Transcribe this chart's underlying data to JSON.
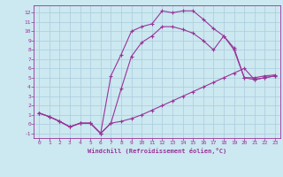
{
  "xlabel": "Windchill (Refroidissement éolien,°C)",
  "bg_color": "#cce8f0",
  "line_color": "#993399",
  "grid_color": "#aaccdd",
  "xlim": [
    -0.5,
    23.5
  ],
  "ylim": [
    -1.5,
    12.8
  ],
  "xticks": [
    0,
    1,
    2,
    3,
    4,
    5,
    6,
    7,
    8,
    9,
    10,
    11,
    12,
    13,
    14,
    15,
    16,
    17,
    18,
    19,
    20,
    21,
    22,
    23
  ],
  "yticks": [
    -1,
    0,
    1,
    2,
    3,
    4,
    5,
    6,
    7,
    8,
    9,
    10,
    11,
    12
  ],
  "line1_x": [
    0,
    1,
    2,
    3,
    4,
    5,
    6,
    7,
    8,
    9,
    10,
    11,
    12,
    13,
    14,
    15,
    16,
    17,
    18,
    19,
    20,
    21,
    22,
    23
  ],
  "line1_y": [
    1.2,
    0.8,
    0.3,
    -0.3,
    0.1,
    0.1,
    -1.0,
    0.1,
    0.3,
    0.6,
    1.0,
    1.5,
    2.0,
    2.5,
    3.0,
    3.5,
    4.0,
    4.5,
    5.0,
    5.5,
    6.0,
    4.8,
    5.0,
    5.2
  ],
  "line2_x": [
    0,
    1,
    2,
    3,
    4,
    5,
    6,
    7,
    8,
    9,
    10,
    11,
    12,
    13,
    14,
    15,
    16,
    17,
    18,
    19,
    20,
    21,
    22,
    23
  ],
  "line2_y": [
    1.2,
    0.8,
    0.3,
    -0.3,
    0.1,
    0.1,
    -1.0,
    5.2,
    7.5,
    10.0,
    10.5,
    10.8,
    12.2,
    12.0,
    12.2,
    12.2,
    11.3,
    10.3,
    9.5,
    8.2,
    5.0,
    5.0,
    5.2,
    5.3
  ],
  "line3_x": [
    0,
    1,
    2,
    3,
    4,
    5,
    6,
    7,
    8,
    9,
    10,
    11,
    12,
    13,
    14,
    15,
    16,
    17,
    18,
    19,
    20,
    21,
    22,
    23
  ],
  "line3_y": [
    1.2,
    0.8,
    0.3,
    -0.3,
    0.1,
    0.1,
    -1.0,
    0.1,
    3.8,
    7.3,
    8.8,
    9.5,
    10.5,
    10.5,
    10.2,
    9.8,
    9.0,
    8.0,
    9.5,
    8.0,
    5.0,
    4.8,
    5.0,
    5.2
  ]
}
